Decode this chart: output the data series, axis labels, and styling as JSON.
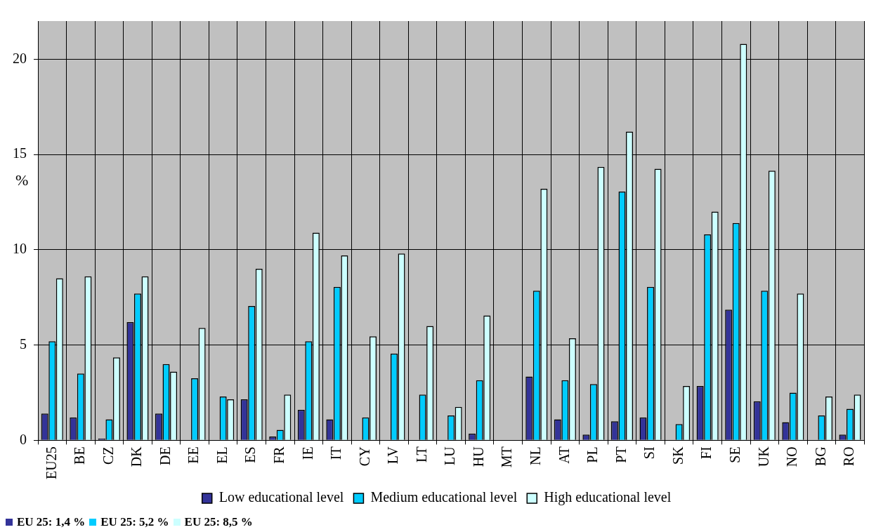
{
  "chart_data": {
    "type": "bar",
    "ylabel": "%",
    "categories": [
      "EU25",
      "BE",
      "CZ",
      "DK",
      "DE",
      "EE",
      "EL",
      "ES",
      "FR",
      "IE",
      "IT",
      "CY",
      "LV",
      "LT",
      "LU",
      "HU",
      "MT",
      "NL",
      "AT",
      "PL",
      "PT",
      "SI",
      "SK",
      "FI",
      "SE",
      "UK",
      "NO",
      "BG",
      "RO"
    ],
    "series": [
      {
        "name": "Low educational level",
        "color": "#333399",
        "values": [
          1.4,
          1.2,
          0.1,
          6.2,
          1.4,
          null,
          null,
          2.15,
          0.2,
          1.6,
          1.1,
          null,
          null,
          null,
          null,
          0.35,
          null,
          3.35,
          1.1,
          0.3,
          1.0,
          1.2,
          null,
          2.85,
          6.85,
          2.05,
          0.95,
          null,
          0.3
        ]
      },
      {
        "name": "Medium educational level",
        "color": "#00ccff",
        "values": [
          5.2,
          3.5,
          1.1,
          7.7,
          4.0,
          3.25,
          2.3,
          7.05,
          0.55,
          5.2,
          8.05,
          1.2,
          4.55,
          2.4,
          1.3,
          3.15,
          null,
          7.85,
          3.15,
          2.95,
          13.05,
          8.05,
          0.85,
          10.8,
          11.4,
          7.85,
          2.5,
          1.3,
          1.65
        ]
      },
      {
        "name": "High educational level",
        "color": "#ccffff",
        "values": [
          8.5,
          8.6,
          4.35,
          8.6,
          3.6,
          5.9,
          2.15,
          9.0,
          2.4,
          10.9,
          9.7,
          5.45,
          9.8,
          6.0,
          1.75,
          6.55,
          null,
          13.2,
          5.35,
          14.35,
          16.2,
          14.25,
          2.85,
          12.0,
          20.8,
          14.15,
          7.7,
          2.3,
          2.4
        ]
      }
    ],
    "ylim": [
      0,
      22
    ],
    "yticks": [
      0,
      5,
      10,
      15,
      20
    ],
    "grid": true,
    "legend": "bottom",
    "annotations": [
      "EU 25: 1,4 %",
      "EU 25: 5,2 %",
      "EU 25: 8,5 %"
    ]
  }
}
